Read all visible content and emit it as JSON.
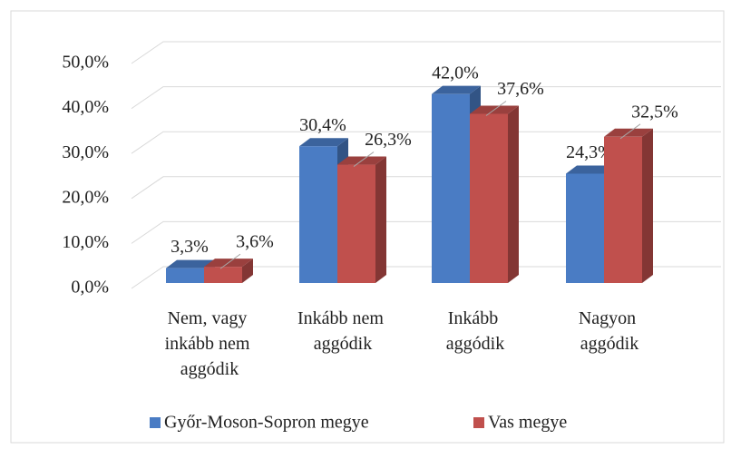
{
  "chart_data": {
    "type": "bar3d",
    "categories": [
      "Nem, vagy inkább nem aggódik",
      "Inkább nem aggódik",
      "Inkább aggódik",
      "Nagyon aggódik"
    ],
    "series": [
      {
        "name": "Győr-Moson-Sopron megye",
        "color": "#4a7cc4",
        "values": [
          3.3,
          30.4,
          42.0,
          24.3
        ],
        "value_labels": [
          "3,3%",
          "30,4%",
          "42,0%",
          "24,3%"
        ]
      },
      {
        "name": "Vas megye",
        "color": "#c0504d",
        "values": [
          3.6,
          26.3,
          37.6,
          32.5
        ],
        "value_labels": [
          "3,6%",
          "26,3%",
          "37,6%",
          "32,5%"
        ]
      }
    ],
    "ylim": [
      0,
      50
    ],
    "yticks": [
      {
        "value": 0,
        "label": "0,0%"
      },
      {
        "value": 10,
        "label": "10,0%"
      },
      {
        "value": 20,
        "label": "20,0%"
      },
      {
        "value": 30,
        "label": "30,0%"
      },
      {
        "value": 40,
        "label": "40,0%"
      },
      {
        "value": 50,
        "label": "50,0%"
      }
    ],
    "grid": true,
    "legend": "bottom"
  }
}
